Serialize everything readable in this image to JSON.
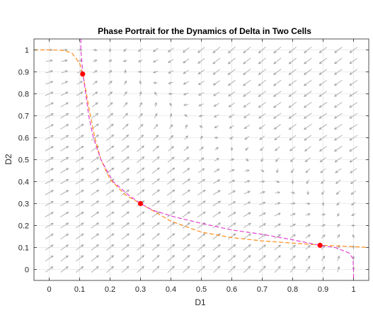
{
  "chart_data": {
    "type": "line",
    "title": "Phase Portrait for the Dynamics of Delta in Two Cells",
    "xlabel": "D1",
    "ylabel": "D2",
    "xlim": [
      -0.05,
      1.05
    ],
    "ylim": [
      -0.05,
      1.05
    ],
    "x_ticks": [
      0,
      0.1,
      0.2,
      0.3,
      0.4,
      0.5,
      0.6,
      0.7,
      0.8,
      0.9,
      1
    ],
    "y_ticks": [
      0,
      0.1,
      0.2,
      0.3,
      0.4,
      0.5,
      0.6,
      0.7,
      0.8,
      0.9,
      1
    ],
    "x_tick_labels": [
      "0",
      "0.1",
      "0.2",
      "0.3",
      "0.4",
      "0.5",
      "0.6",
      "0.7",
      "0.8",
      "0.9",
      "1"
    ],
    "y_tick_labels": [
      "0",
      "0.1",
      "0.2",
      "0.3",
      "0.4",
      "0.5",
      "0.6",
      "0.7",
      "0.8",
      "0.9",
      "1"
    ],
    "grid": true,
    "series": [
      {
        "style": "dashed",
        "color": "#ff8c1a",
        "points": [
          [
            -0.05,
            1.0
          ],
          [
            0.0,
            1.0
          ],
          [
            0.05,
            0.998
          ],
          [
            0.075,
            0.985
          ],
          [
            0.1,
            0.94
          ],
          [
            0.11,
            0.89
          ],
          [
            0.12,
            0.82
          ],
          [
            0.13,
            0.74
          ],
          [
            0.15,
            0.6
          ],
          [
            0.17,
            0.5
          ],
          [
            0.2,
            0.41
          ],
          [
            0.25,
            0.34
          ],
          [
            0.3,
            0.3
          ],
          [
            0.35,
            0.26
          ],
          [
            0.4,
            0.22
          ],
          [
            0.5,
            0.17
          ],
          [
            0.6,
            0.145
          ],
          [
            0.7,
            0.13
          ],
          [
            0.8,
            0.12
          ],
          [
            0.9,
            0.11
          ],
          [
            1.0,
            0.104
          ],
          [
            1.05,
            0.1
          ]
        ]
      },
      {
        "style": "dashed",
        "color": "#e040d0",
        "points": [
          [
            0.104,
            1.05
          ],
          [
            0.104,
            1.0
          ],
          [
            0.11,
            0.9
          ],
          [
            0.12,
            0.8
          ],
          [
            0.13,
            0.7
          ],
          [
            0.145,
            0.6
          ],
          [
            0.17,
            0.5
          ],
          [
            0.21,
            0.4
          ],
          [
            0.26,
            0.34
          ],
          [
            0.3,
            0.3
          ],
          [
            0.34,
            0.27
          ],
          [
            0.41,
            0.24
          ],
          [
            0.5,
            0.21
          ],
          [
            0.6,
            0.18
          ],
          [
            0.7,
            0.16
          ],
          [
            0.8,
            0.135
          ],
          [
            0.89,
            0.11
          ],
          [
            0.94,
            0.1
          ],
          [
            0.985,
            0.075
          ],
          [
            0.998,
            0.05
          ],
          [
            1.0,
            0.0
          ],
          [
            1.0,
            -0.05
          ]
        ]
      },
      {
        "type": "scatter",
        "color": "#ff0000",
        "points": [
          [
            0.11,
            0.89
          ],
          [
            0.3,
            0.3
          ],
          [
            0.89,
            0.11
          ]
        ]
      }
    ],
    "vector_field": {
      "color": "#a0a0a0",
      "grid_x": [
        0,
        0.05,
        0.1,
        0.15,
        0.2,
        0.25,
        0.3,
        0.35,
        0.4,
        0.45,
        0.5,
        0.55,
        0.6,
        0.65,
        0.7,
        0.75,
        0.8,
        0.85,
        0.9,
        0.95,
        1
      ],
      "grid_y": [
        0,
        0.05,
        0.1,
        0.15,
        0.2,
        0.25,
        0.3,
        0.35,
        0.4,
        0.45,
        0.5,
        0.55,
        0.6,
        0.65,
        0.7,
        0.75,
        0.8,
        0.85,
        0.9,
        0.95,
        1
      ]
    }
  }
}
